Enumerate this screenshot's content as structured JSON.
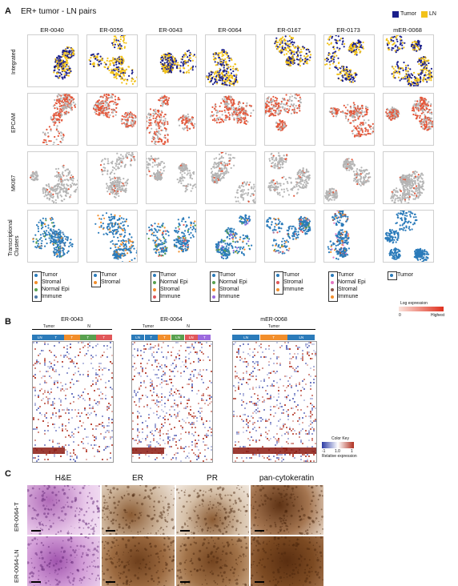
{
  "panelA": {
    "letter": "A",
    "title": "ER+ tumor - LN pairs",
    "legend": {
      "tumor_label": "Tumor",
      "ln_label": "LN",
      "tumor_color": "#1a1f8c",
      "ln_color": "#f2c21a"
    },
    "columns": [
      "ER-0040",
      "ER-0056",
      "ER-0043",
      "ER-0064",
      "ER-0167",
      "ER-0173",
      "mER-0068"
    ],
    "rows": [
      "Integrated",
      "EPCAM",
      "MKI67",
      "Transcriptional Clusters"
    ],
    "cluster_legends": [
      [
        "Tumor",
        "Stromal",
        "Normal Epi",
        "Immune"
      ],
      [
        "Tumor",
        "Stromal"
      ],
      [
        "Tumor",
        "Normal Epi",
        "Stromal",
        "Immune"
      ],
      [
        "Tumor",
        "Normal Epi",
        "Stromal",
        "Immune"
      ],
      [
        "Tumor",
        "Stromal",
        "Immune"
      ],
      [
        "Tumor",
        "Normal Epi",
        "Stromal",
        "Immune"
      ],
      [
        "Tumor"
      ]
    ],
    "log_expression": {
      "title": "Log expression",
      "low": "0",
      "high": "Highest"
    }
  },
  "panelB": {
    "letter": "B",
    "heatmaps": [
      {
        "title": "ER-0043",
        "groups": [
          {
            "label": "Tumor"
          },
          {
            "label": "N"
          }
        ],
        "segments": [
          "LN",
          "T",
          "T",
          "T",
          "T"
        ]
      },
      {
        "title": "ER-0064",
        "groups": [
          {
            "label": "Tumor"
          },
          {
            "label": "N"
          }
        ],
        "segments": [
          "LN",
          "T",
          "T",
          "LN",
          "LN",
          "T"
        ]
      },
      {
        "title": "mER-0068",
        "groups": [
          {
            "label": "Tumor"
          }
        ],
        "segments": [
          "LN",
          "T",
          "LN"
        ]
      }
    ],
    "color_key": {
      "title": "Color Key",
      "ticks": [
        "-1",
        "1.0",
        "1"
      ],
      "label": "Relative expression"
    }
  },
  "panelC": {
    "letter": "C",
    "stains": [
      "H&E",
      "ER",
      "PR",
      "pan-cytokeratin"
    ],
    "samples": [
      "ER-0064-T",
      "ER-0064-LN"
    ]
  }
}
